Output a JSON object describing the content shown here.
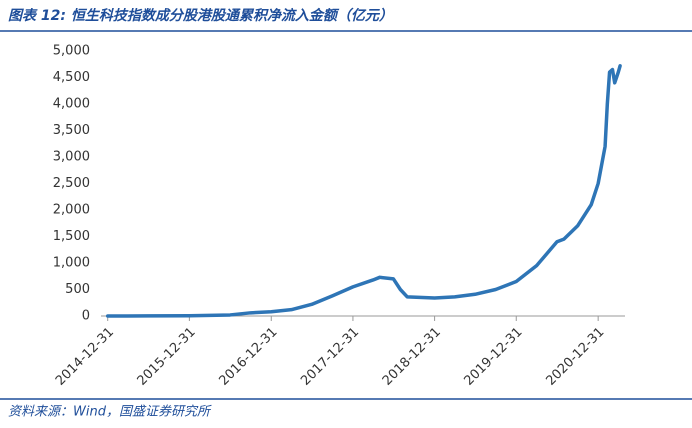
{
  "chart_data": {
    "type": "line",
    "title": "图表 12: 恒生科技指数成分股港股通累积净流入金额（亿元）",
    "source": "资料来源：Wind，国盛证券研究所",
    "color": "#2e75b6",
    "x": [
      "2014-12-31",
      "2015-06-30",
      "2015-12-31",
      "2016-06-30",
      "2016-09-30",
      "2016-12-31",
      "2017-03-31",
      "2017-06-30",
      "2017-09-30",
      "2017-12-31",
      "2018-03-31",
      "2018-04-30",
      "2018-06-30",
      "2018-07-31",
      "2018-08-31",
      "2018-12-31",
      "2019-03-31",
      "2019-06-30",
      "2019-09-30",
      "2019-12-31",
      "2020-03-31",
      "2020-06-30",
      "2020-07-31",
      "2020-09-30",
      "2020-11-30",
      "2020-12-31",
      "2021-01-31",
      "2021-02-10",
      "2021-02-20",
      "2021-03-05",
      "2021-03-15",
      "2021-03-31",
      "2021-04-08"
    ],
    "values": [
      0,
      2,
      5,
      20,
      60,
      80,
      120,
      220,
      380,
      550,
      680,
      730,
      700,
      500,
      360,
      340,
      360,
      410,
      500,
      650,
      950,
      1400,
      1450,
      1700,
      2100,
      2500,
      3200,
      4000,
      4600,
      4650,
      4400,
      4600,
      4720
    ],
    "xlim": [
      "2014-12-01",
      "2021-04-30"
    ],
    "xticks": [
      "2014-12-31",
      "2015-12-31",
      "2016-12-31",
      "2017-12-31",
      "2018-12-31",
      "2019-12-31",
      "2020-12-31"
    ],
    "ylim": [
      0,
      5000
    ],
    "yticks": [
      0,
      500,
      {
        "value": 1000,
        "label": "1,000"
      },
      {
        "value": 1500,
        "label": "1,500"
      },
      {
        "value": 2000,
        "label": "2,000"
      },
      {
        "value": 2500,
        "label": "2,500"
      },
      {
        "value": 3000,
        "label": "3,000"
      },
      {
        "value": 3500,
        "label": "3,500"
      },
      {
        "value": 4000,
        "label": "4,000"
      },
      {
        "value": 4500,
        "label": "4,500"
      },
      {
        "value": 5000,
        "label": "5,000"
      }
    ]
  }
}
